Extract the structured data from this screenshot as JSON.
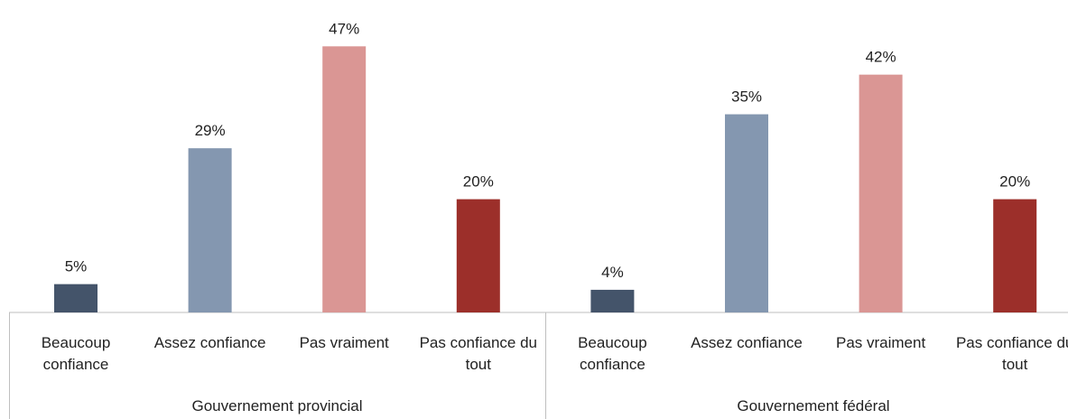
{
  "chart_data": {
    "type": "bar",
    "categories": [
      "Beaucoup confiance",
      "Assez confiance",
      "Pas vraiment",
      "Pas confiance du tout"
    ],
    "colors": [
      "#44546a",
      "#8497b0",
      "#da9694",
      "#9c2f2a"
    ],
    "series": [
      {
        "name": "Gouvernement provincial",
        "values": [
          5,
          29,
          47,
          20
        ],
        "value_labels": [
          "5%",
          "29%",
          "47%",
          "20%"
        ]
      },
      {
        "name": "Gouvernement fédéral",
        "values": [
          4,
          35,
          42,
          20
        ],
        "value_labels": [
          "4%",
          "35%",
          "42%",
          "20%"
        ]
      }
    ]
  }
}
